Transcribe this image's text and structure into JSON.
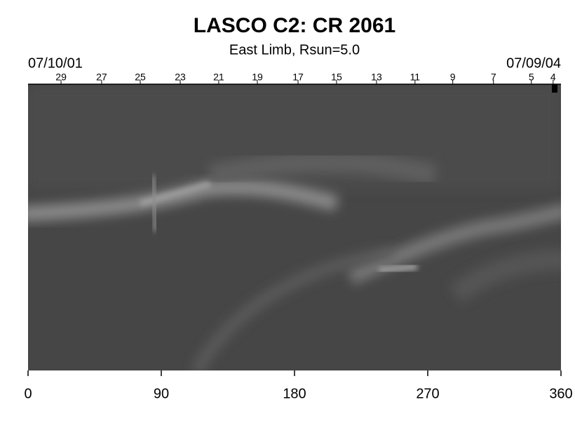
{
  "chart_data": {
    "type": "image",
    "title": "LASCO C2: CR 2061",
    "subtitle": "East Limb, Rsun=5.0",
    "start_date": "07/10/01",
    "end_date": "07/09/04",
    "xlim": [
      0,
      360
    ],
    "xticks": [
      0,
      90,
      180,
      270,
      360
    ],
    "top_ticks": [
      {
        "value": 22.3,
        "label": "29"
      },
      {
        "value": 49.7,
        "label": "27"
      },
      {
        "value": 75.8,
        "label": "25"
      },
      {
        "value": 102.8,
        "label": "23"
      },
      {
        "value": 128.8,
        "label": "21"
      },
      {
        "value": 154.9,
        "label": "19"
      },
      {
        "value": 182.4,
        "label": "17"
      },
      {
        "value": 208.4,
        "label": "15"
      },
      {
        "value": 235.4,
        "label": "13"
      },
      {
        "value": 261.4,
        "label": "11"
      },
      {
        "value": 286.9,
        "label": "9"
      },
      {
        "value": 314.4,
        "label": "7"
      },
      {
        "value": 340,
        "label": "5"
      },
      {
        "value": 354.7,
        "label": "4"
      }
    ]
  }
}
